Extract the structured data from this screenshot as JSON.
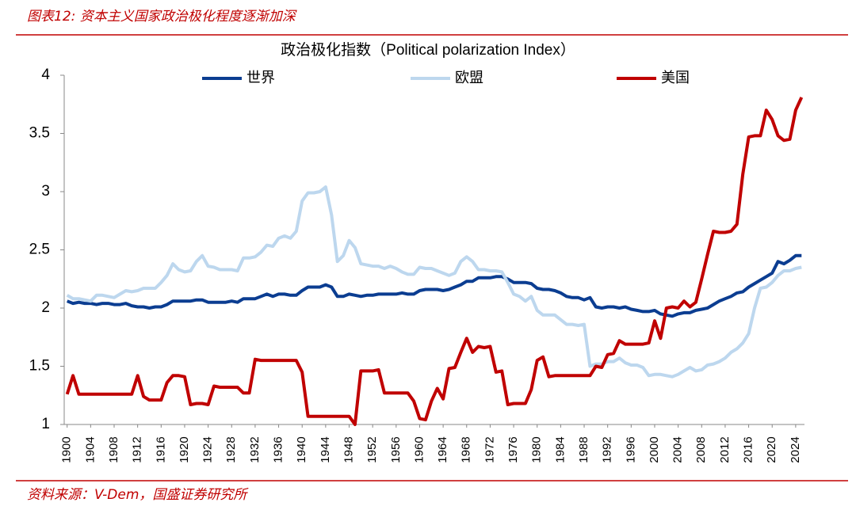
{
  "header": {
    "title": "图表12: 资本主义国家政治极化程度逐渐加深"
  },
  "footer": {
    "source": "资料来源：V-Dem，国盛证券研究所"
  },
  "chart_data": {
    "type": "line",
    "title": "政治极化指数（Political polarization Index）",
    "legend": "top",
    "grid": false,
    "x": [
      1900,
      1901,
      1902,
      1903,
      1904,
      1905,
      1906,
      1907,
      1908,
      1909,
      1910,
      1911,
      1912,
      1913,
      1914,
      1915,
      1916,
      1917,
      1918,
      1919,
      1920,
      1921,
      1922,
      1923,
      1924,
      1925,
      1926,
      1927,
      1928,
      1929,
      1930,
      1931,
      1932,
      1933,
      1934,
      1935,
      1936,
      1937,
      1938,
      1939,
      1940,
      1941,
      1942,
      1943,
      1944,
      1945,
      1946,
      1947,
      1948,
      1949,
      1950,
      1951,
      1952,
      1953,
      1954,
      1955,
      1956,
      1957,
      1958,
      1959,
      1960,
      1961,
      1962,
      1963,
      1964,
      1965,
      1966,
      1967,
      1968,
      1969,
      1970,
      1971,
      1972,
      1973,
      1974,
      1975,
      1976,
      1977,
      1978,
      1979,
      1980,
      1981,
      1982,
      1983,
      1984,
      1985,
      1986,
      1987,
      1988,
      1989,
      1990,
      1991,
      1992,
      1993,
      1994,
      1995,
      1996,
      1997,
      1998,
      1999,
      2000,
      2001,
      2002,
      2003,
      2004,
      2005,
      2006,
      2007,
      2008,
      2009,
      2010,
      2011,
      2012,
      2013,
      2014,
      2015,
      2016,
      2017,
      2018,
      2019,
      2020,
      2021,
      2022,
      2023,
      2024,
      2025
    ],
    "xlim": [
      1899.5,
      2025.5
    ],
    "xticks": [
      1900,
      1904,
      1908,
      1912,
      1916,
      1920,
      1924,
      1928,
      1932,
      1936,
      1940,
      1944,
      1948,
      1952,
      1956,
      1960,
      1964,
      1968,
      1972,
      1976,
      1980,
      1984,
      1988,
      1992,
      1996,
      2000,
      2004,
      2008,
      2012,
      2016,
      2020,
      2024
    ],
    "ylim": [
      1,
      4
    ],
    "yticks": [
      1,
      1.5,
      2,
      2.5,
      3,
      3.5,
      4
    ],
    "series": [
      {
        "name": "世界",
        "color": "#0b3d91",
        "values": [
          2.06,
          2.04,
          2.05,
          2.04,
          2.04,
          2.03,
          2.04,
          2.04,
          2.03,
          2.03,
          2.04,
          2.02,
          2.01,
          2.01,
          2.0,
          2.01,
          2.01,
          2.03,
          2.06,
          2.06,
          2.06,
          2.06,
          2.07,
          2.07,
          2.05,
          2.05,
          2.05,
          2.05,
          2.06,
          2.05,
          2.08,
          2.08,
          2.08,
          2.1,
          2.12,
          2.1,
          2.12,
          2.12,
          2.11,
          2.11,
          2.15,
          2.18,
          2.18,
          2.18,
          2.2,
          2.18,
          2.1,
          2.1,
          2.12,
          2.11,
          2.1,
          2.11,
          2.11,
          2.12,
          2.12,
          2.12,
          2.12,
          2.13,
          2.12,
          2.12,
          2.15,
          2.16,
          2.16,
          2.16,
          2.15,
          2.16,
          2.18,
          2.2,
          2.23,
          2.23,
          2.26,
          2.26,
          2.26,
          2.27,
          2.27,
          2.25,
          2.22,
          2.22,
          2.22,
          2.21,
          2.17,
          2.16,
          2.16,
          2.15,
          2.13,
          2.1,
          2.09,
          2.09,
          2.07,
          2.09,
          2.01,
          2.0,
          2.01,
          2.01,
          2.0,
          2.01,
          1.99,
          1.98,
          1.97,
          1.97,
          1.98,
          1.95,
          1.94,
          1.93,
          1.95,
          1.96,
          1.96,
          1.98,
          1.99,
          2.0,
          2.03,
          2.06,
          2.08,
          2.1,
          2.13,
          2.14,
          2.18,
          2.21,
          2.24,
          2.27,
          2.3,
          2.4,
          2.38,
          2.41,
          2.45,
          2.45
        ]
      },
      {
        "name": "欧盟",
        "color": "#bdd7ee",
        "values": [
          2.11,
          2.08,
          2.08,
          2.07,
          2.06,
          2.11,
          2.11,
          2.1,
          2.09,
          2.12,
          2.15,
          2.14,
          2.15,
          2.17,
          2.17,
          2.17,
          2.22,
          2.28,
          2.38,
          2.33,
          2.31,
          2.32,
          2.4,
          2.45,
          2.36,
          2.35,
          2.33,
          2.33,
          2.33,
          2.32,
          2.43,
          2.43,
          2.44,
          2.48,
          2.54,
          2.53,
          2.6,
          2.62,
          2.6,
          2.66,
          2.92,
          2.99,
          2.99,
          3.0,
          3.04,
          2.8,
          2.4,
          2.45,
          2.58,
          2.52,
          2.38,
          2.37,
          2.36,
          2.36,
          2.34,
          2.36,
          2.34,
          2.31,
          2.29,
          2.29,
          2.35,
          2.34,
          2.34,
          2.32,
          2.3,
          2.28,
          2.3,
          2.4,
          2.44,
          2.4,
          2.33,
          2.33,
          2.32,
          2.32,
          2.31,
          2.22,
          2.12,
          2.1,
          2.06,
          2.1,
          1.98,
          1.94,
          1.94,
          1.94,
          1.9,
          1.86,
          1.86,
          1.85,
          1.86,
          1.5,
          1.52,
          1.52,
          1.54,
          1.54,
          1.57,
          1.53,
          1.51,
          1.51,
          1.49,
          1.42,
          1.43,
          1.43,
          1.42,
          1.41,
          1.43,
          1.46,
          1.49,
          1.46,
          1.47,
          1.51,
          1.52,
          1.54,
          1.57,
          1.62,
          1.65,
          1.7,
          1.78,
          2.0,
          2.17,
          2.18,
          2.22,
          2.28,
          2.32,
          2.32,
          2.34,
          2.35
        ]
      },
      {
        "name": "美国",
        "color": "#c00000",
        "values": [
          1.26,
          1.42,
          1.26,
          1.26,
          1.26,
          1.26,
          1.26,
          1.26,
          1.26,
          1.26,
          1.26,
          1.26,
          1.42,
          1.24,
          1.21,
          1.21,
          1.21,
          1.36,
          1.42,
          1.42,
          1.41,
          1.17,
          1.18,
          1.18,
          1.17,
          1.33,
          1.32,
          1.32,
          1.32,
          1.32,
          1.27,
          1.27,
          1.56,
          1.55,
          1.55,
          1.55,
          1.55,
          1.55,
          1.55,
          1.55,
          1.45,
          1.07,
          1.07,
          1.07,
          1.07,
          1.07,
          1.07,
          1.07,
          1.07,
          1.0,
          1.46,
          1.46,
          1.46,
          1.47,
          1.27,
          1.27,
          1.27,
          1.27,
          1.27,
          1.2,
          1.05,
          1.04,
          1.2,
          1.31,
          1.22,
          1.48,
          1.49,
          1.62,
          1.74,
          1.62,
          1.67,
          1.66,
          1.67,
          1.45,
          1.46,
          1.17,
          1.18,
          1.18,
          1.18,
          1.3,
          1.55,
          1.58,
          1.41,
          1.42,
          1.42,
          1.42,
          1.42,
          1.42,
          1.42,
          1.42,
          1.5,
          1.49,
          1.6,
          1.61,
          1.72,
          1.69,
          1.69,
          1.69,
          1.69,
          1.7,
          1.89,
          1.74,
          2.0,
          2.01,
          2.0,
          2.06,
          2.01,
          2.05,
          2.25,
          2.46,
          2.66,
          2.65,
          2.65,
          2.66,
          2.72,
          3.15,
          3.47,
          3.48,
          3.48,
          3.7,
          3.62,
          3.48,
          3.44,
          3.45,
          3.7,
          3.81
        ]
      }
    ]
  }
}
